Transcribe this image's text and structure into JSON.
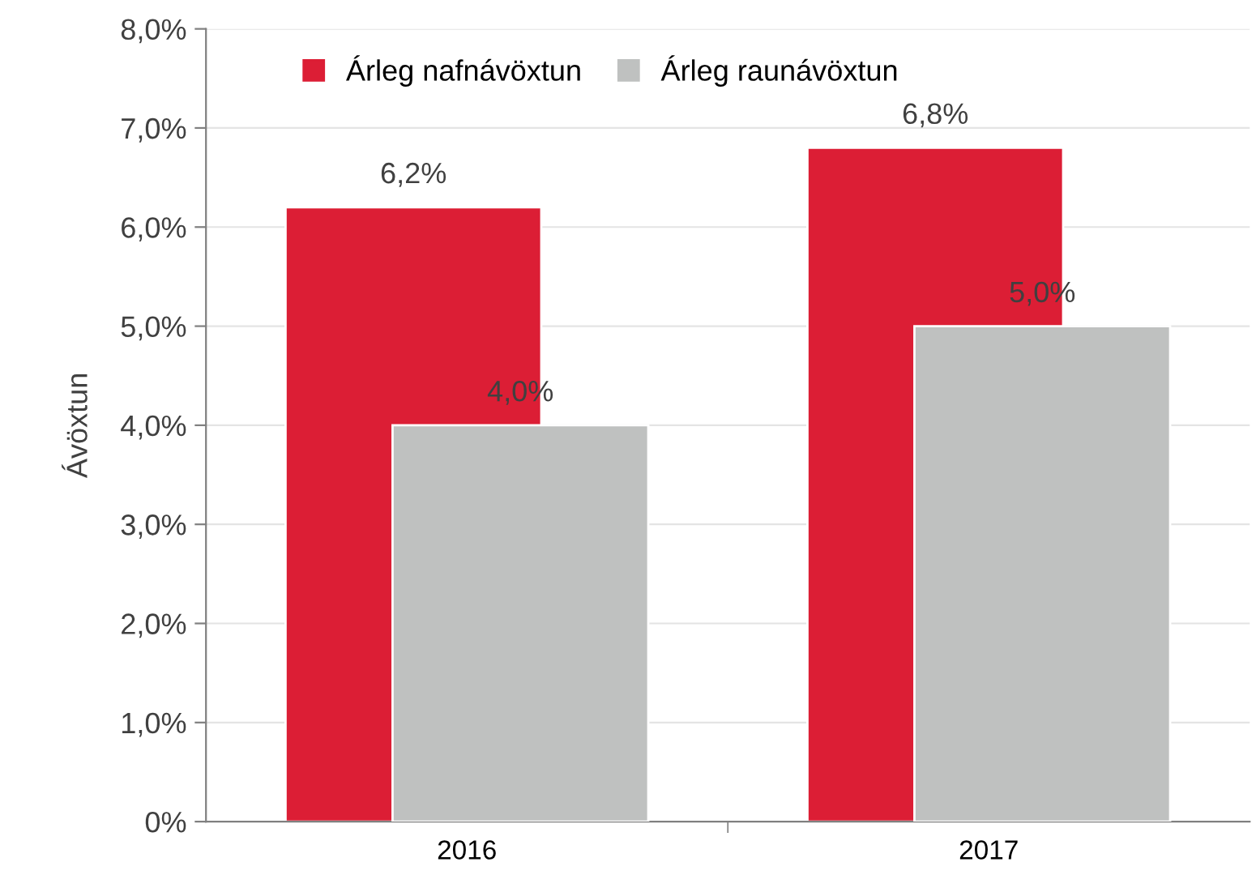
{
  "chart_data": {
    "type": "bar",
    "ylabel": "Ávöxtun",
    "categories": [
      "2016",
      "2017"
    ],
    "series": [
      {
        "name": "Árleg nafnávöxtun",
        "color": "#dc1e35",
        "values": [
          6.2,
          6.8
        ],
        "value_labels": [
          "6,2%",
          "6,8%"
        ]
      },
      {
        "name": "Árleg raunávöxtun",
        "color": "#bfc1c0",
        "values": [
          4.0,
          5.0
        ],
        "value_labels": [
          "4,0%",
          "5,0%"
        ]
      }
    ],
    "ylim": [
      0,
      8
    ],
    "yticks": [
      {
        "value": 0,
        "label": "0%"
      },
      {
        "value": 1,
        "label": "1,0%"
      },
      {
        "value": 2,
        "label": "2,0%"
      },
      {
        "value": 3,
        "label": "3,0%"
      },
      {
        "value": 4,
        "label": "4,0%"
      },
      {
        "value": 5,
        "label": "5,0%"
      },
      {
        "value": 6,
        "label": "6,0%"
      },
      {
        "value": 7,
        "label": "7,0%"
      },
      {
        "value": 8,
        "label": "8,0%"
      }
    ],
    "grid": "y",
    "legend": "top left"
  }
}
